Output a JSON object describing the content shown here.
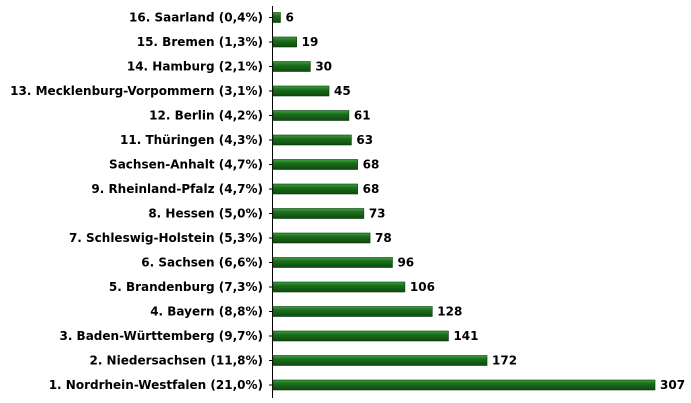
{
  "chart_data": {
    "type": "bar",
    "orientation": "horizontal",
    "bar_color": "#1e6e1e",
    "bar_highlight": "#3aa53a",
    "categories": [
      "16. Saarland (0,4%)",
      "15. Bremen (1,3%)",
      "14. Hamburg (2,1%)",
      "13. Mecklenburg-Vorpommern (3,1%)",
      "12. Berlin (4,2%)",
      "11. Thüringen (4,3%)",
      "Sachsen-Anhalt (4,7%)",
      "9. Rheinland-Pfalz (4,7%)",
      "8. Hessen (5,0%)",
      "7. Schleswig-Holstein (5,3%)",
      "6. Sachsen (6,6%)",
      "5. Brandenburg (7,3%)",
      "4. Bayern (8,8%)",
      "3. Baden-Württemberg (9,7%)",
      "2. Niedersachsen (11,8%)",
      "1. Nordrhein-Westfalen (21,0%)"
    ],
    "values": [
      6,
      19,
      30,
      45,
      61,
      63,
      68,
      68,
      73,
      78,
      96,
      106,
      128,
      141,
      172,
      307
    ],
    "xlim": [
      0,
      307
    ]
  }
}
